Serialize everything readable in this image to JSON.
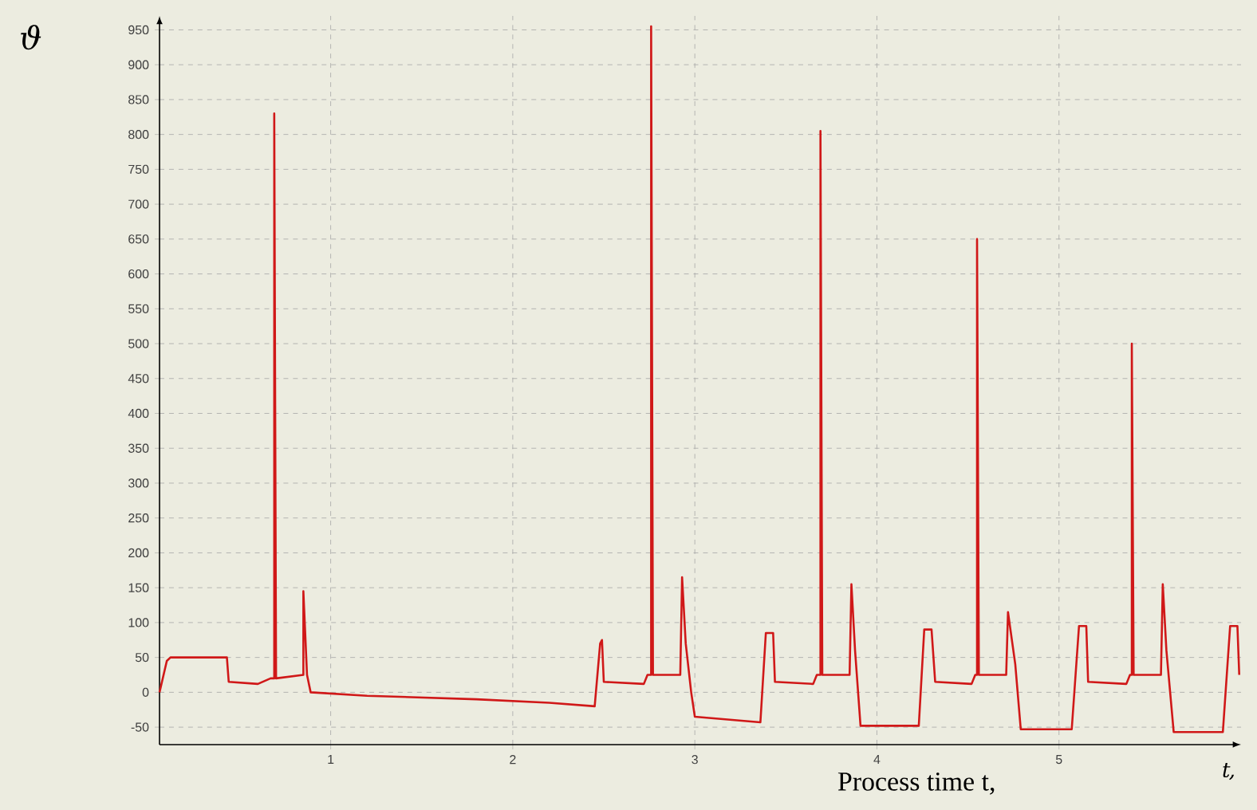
{
  "chart_data": {
    "type": "line",
    "xlabel": "t,",
    "ylabel": "ϑ",
    "annotations": [
      "Process time t,"
    ],
    "xlim": [
      0.06,
      6.0
    ],
    "ylim": [
      -75,
      970
    ],
    "xticks": [
      1,
      2,
      3,
      4,
      5
    ],
    "yticks": [
      -50,
      0,
      50,
      100,
      150,
      200,
      250,
      300,
      350,
      400,
      450,
      500,
      550,
      600,
      650,
      700,
      750,
      800,
      850,
      900,
      950
    ],
    "grid": true,
    "marker": "none",
    "line_style": "solid",
    "series": [
      {
        "color": "#d01818",
        "x": [
          0.06,
          0.1,
          0.12,
          0.43,
          0.44,
          0.6,
          0.67,
          0.69,
          0.69,
          0.7,
          0.85,
          0.85,
          0.87,
          0.89,
          1.2,
          1.8,
          2.2,
          2.45,
          2.48,
          2.49,
          2.5,
          2.72,
          2.74,
          2.76,
          2.76,
          2.77,
          2.92,
          2.93,
          2.95,
          2.98,
          3.0,
          3.36,
          3.39,
          3.43,
          3.44,
          3.65,
          3.67,
          3.69,
          3.69,
          3.7,
          3.85,
          3.86,
          3.88,
          3.91,
          4.23,
          4.26,
          4.3,
          4.32,
          4.52,
          4.54,
          4.55,
          4.55,
          4.56,
          4.71,
          4.72,
          4.76,
          4.79,
          5.07,
          5.11,
          5.15,
          5.16,
          5.37,
          5.39,
          5.4,
          5.4,
          5.41,
          5.56,
          5.57,
          5.59,
          5.63,
          5.9,
          5.94,
          5.98,
          5.99
        ],
        "values": [
          0,
          45,
          50,
          50,
          15,
          12,
          20,
          20,
          830,
          20,
          25,
          145,
          25,
          0,
          -5,
          -10,
          -15,
          -20,
          70,
          75,
          15,
          12,
          25,
          25,
          955,
          25,
          25,
          165,
          70,
          0,
          -35,
          -43,
          85,
          85,
          15,
          12,
          25,
          25,
          805,
          25,
          25,
          155,
          60,
          -48,
          -48,
          90,
          90,
          15,
          12,
          25,
          25,
          650,
          25,
          25,
          115,
          40,
          -53,
          -53,
          95,
          95,
          15,
          12,
          25,
          25,
          500,
          25,
          25,
          155,
          60,
          -57,
          -57,
          95,
          95,
          25
        ]
      }
    ]
  }
}
